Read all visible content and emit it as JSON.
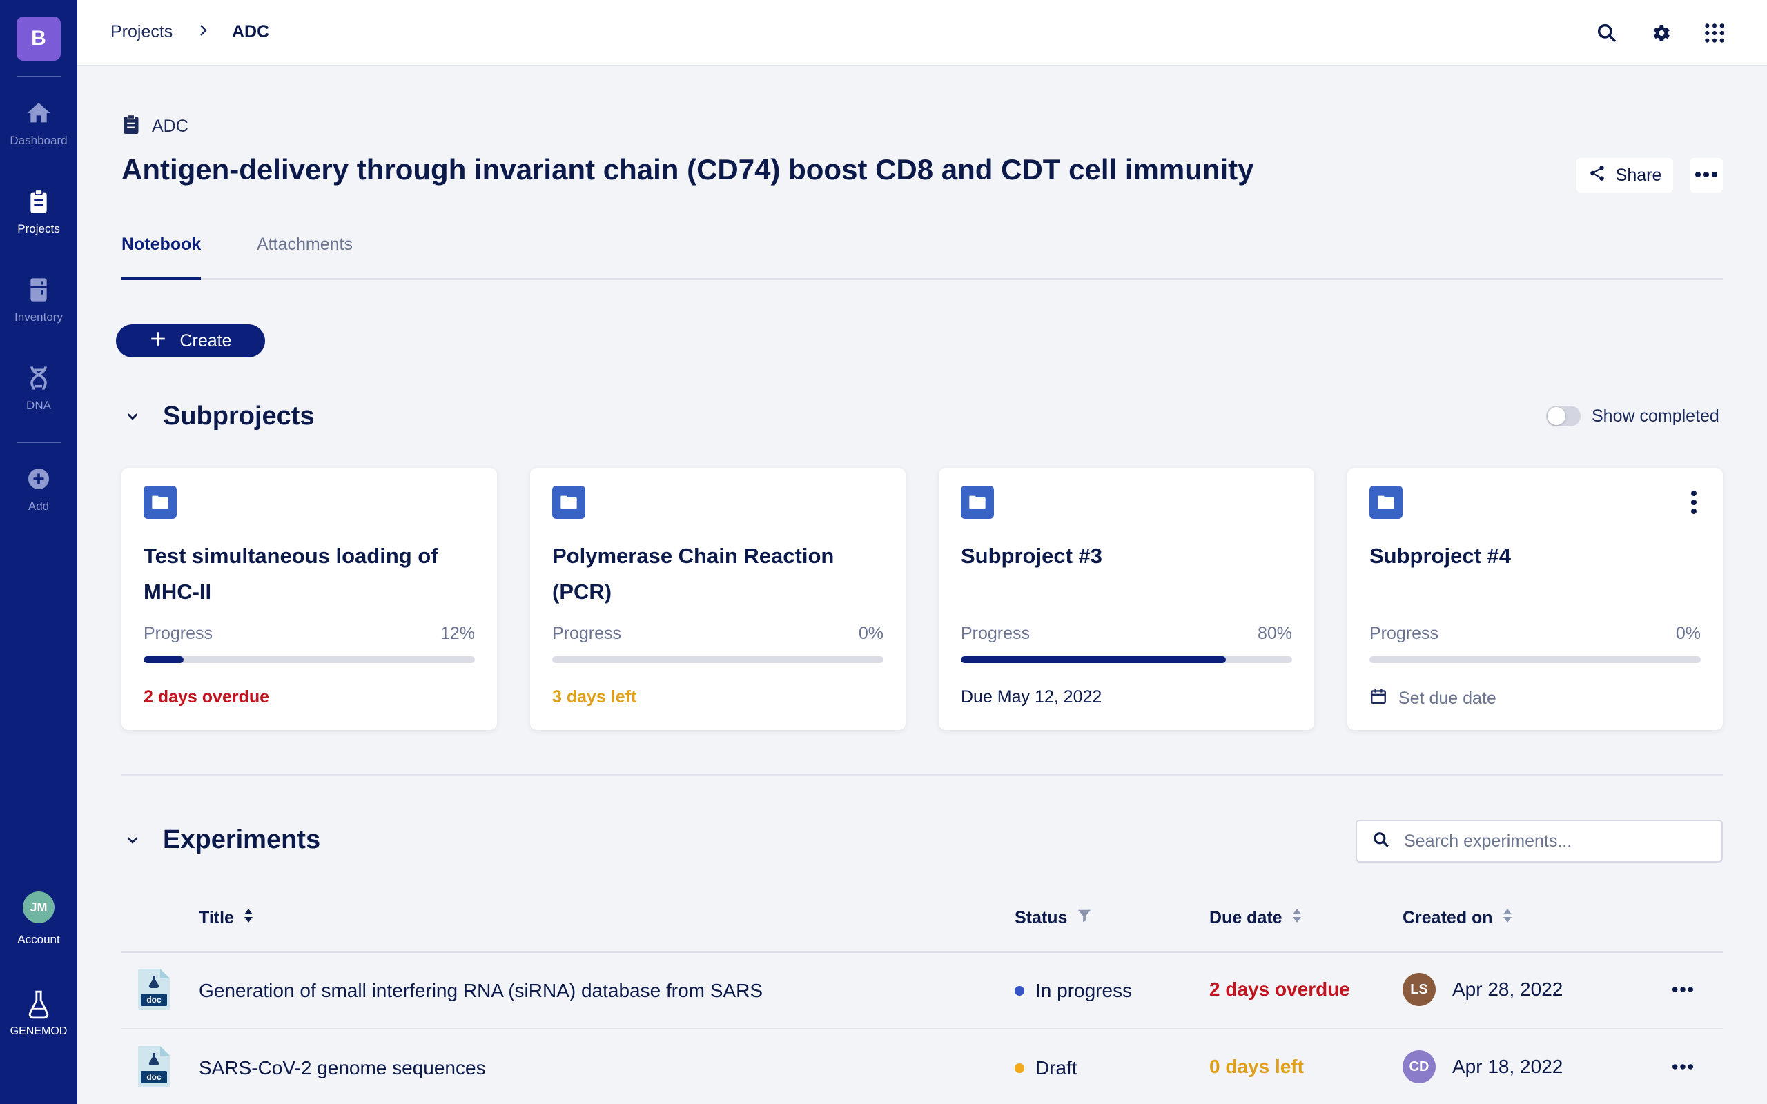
{
  "app": {
    "brand_letter": "B",
    "footer_brand": "GENEMOD"
  },
  "sidebar": {
    "items": [
      {
        "label": "Dashboard",
        "icon": "home-icon"
      },
      {
        "label": "Projects",
        "icon": "clipboard-icon"
      },
      {
        "label": "Inventory",
        "icon": "freezer-icon"
      },
      {
        "label": "DNA",
        "icon": "dna-icon"
      },
      {
        "label": "Add",
        "icon": "plus-circle-icon"
      }
    ],
    "account": {
      "initials": "JM",
      "label": "Account"
    }
  },
  "breadcrumb": {
    "items": [
      "Projects",
      "ADC"
    ],
    "separator": "›"
  },
  "header": {
    "project_tag": "ADC",
    "title": "Antigen-delivery through invariant chain (CD74) boost CD8 and CDT cell immunity",
    "share_label": "Share"
  },
  "tabs": [
    {
      "label": "Notebook",
      "active": true
    },
    {
      "label": "Attachments",
      "active": false
    }
  ],
  "create_label": "Create",
  "subprojects": {
    "title": "Subprojects",
    "show_completed_label": "Show completed",
    "show_completed": false,
    "progress_label": "Progress",
    "cards": [
      {
        "title": "Test simultaneous loading of MHC-II",
        "progress": 12,
        "progress_text": "12%",
        "due": "2 days overdue",
        "due_style": "red",
        "has_menu": false
      },
      {
        "title": "Polymerase Chain Reaction (PCR)",
        "progress": 0,
        "progress_text": "0%",
        "due": "3 days left",
        "due_style": "orange",
        "has_menu": false
      },
      {
        "title": "Subproject #3",
        "progress": 80,
        "progress_text": "80%",
        "due": "Due May 12, 2022",
        "due_style": "dark",
        "has_menu": false
      },
      {
        "title": "Subproject #4",
        "progress": 0,
        "progress_text": "0%",
        "due": "Set due date",
        "due_style": "muted",
        "has_menu": true
      }
    ]
  },
  "experiments": {
    "title": "Experiments",
    "search_placeholder": "Search experiments...",
    "columns": [
      "Title",
      "Status",
      "Due date",
      "Created on"
    ],
    "doc_label": "doc",
    "rows": [
      {
        "title": "Generation of small interfering RNA (siRNA) database from SARS",
        "status": "In progress",
        "status_color": "#3654c8",
        "due": "2 days overdue",
        "due_color": "#c2141e",
        "owner": "LS",
        "owner_color": "#8a5a3c",
        "created": "Apr 28, 2022"
      },
      {
        "title": "SARS-CoV-2 genome sequences",
        "status": "Draft",
        "status_color": "#f2a91a",
        "due": "0 days left",
        "due_color": "#e0a01a",
        "owner": "CD",
        "owner_color": "#8b7cc9",
        "created": "Apr 18, 2022"
      }
    ]
  },
  "colors": {
    "sidebar": "#0c1f7a",
    "accent": "#0c1f7a",
    "folder": "#3a63c6",
    "overdue": "#c2141e",
    "warning": "#e0a01a"
  }
}
